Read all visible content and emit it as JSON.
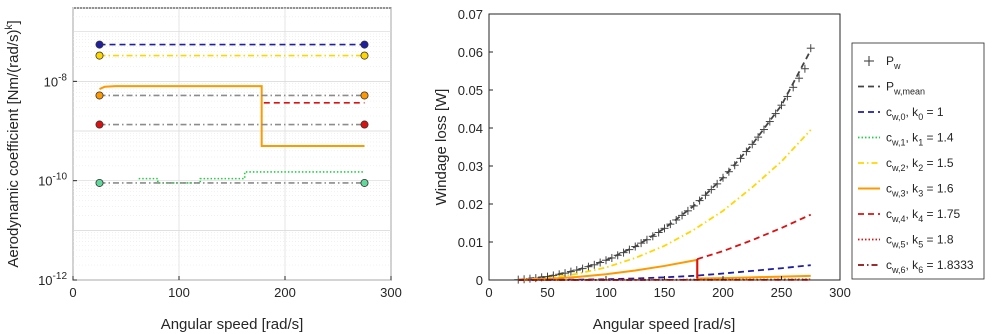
{
  "chart_data": [
    {
      "type": "line",
      "xlabel": "Angular speed [rad/s]",
      "ylabel": "Aerodynamic coefficient [Nm/(rad/s)",
      "ylabel_sup": "k",
      "ylabel_close": "]",
      "xlim": [
        0,
        300
      ],
      "ylim": [
        1e-12,
        3e-07
      ],
      "yscale": "log",
      "xticks": [
        0,
        100,
        200,
        300
      ],
      "xtick_labels": [
        "0",
        "100",
        "200",
        "300"
      ],
      "ytick_labels": [
        {
          "base": "10",
          "exp": "-8",
          "value": 1e-08
        },
        {
          "base": "10",
          "exp": "-10",
          "value": 1e-10
        },
        {
          "base": "10",
          "exp": "-12",
          "value": 1e-12
        }
      ],
      "grid": true,
      "series": [
        {
          "color": "#1f1fa0",
          "dash": "dash",
          "x": [
            25,
            275
          ],
          "y": [
            5.5e-08,
            5.5e-08
          ],
          "markers": [
            [
              25,
              5.5e-08
            ],
            [
              275,
              5.5e-08
            ]
          ]
        },
        {
          "color": "#ffd700",
          "dash": "dashdot",
          "x": [
            25,
            275
          ],
          "y": [
            3.3e-08,
            3.3e-08
          ],
          "markers": [
            [
              25,
              3.3e-08
            ],
            [
              275,
              3.3e-08
            ]
          ]
        },
        {
          "color": "#ff9900",
          "dash": "solid",
          "x": [
            25,
            30,
            40,
            178,
            178,
            275
          ],
          "y": [
            7e-09,
            7.8e-09,
            8e-09,
            8e-09,
            5e-10,
            5e-10
          ]
        },
        {
          "color": "#ff9900",
          "dash": "dashdot-gray",
          "x": [
            25,
            275
          ],
          "y": [
            5.2e-09,
            5.2e-09
          ],
          "markers": [
            [
              25,
              5.2e-09
            ],
            [
              275,
              5.2e-09
            ]
          ]
        },
        {
          "color": "#dd1111",
          "dash": "dash",
          "x": [
            180,
            275
          ],
          "y": [
            3.7e-09,
            3.7e-09
          ]
        },
        {
          "color": "#dd1111",
          "dash": "dashdot-gray",
          "x": [
            25,
            275
          ],
          "y": [
            1.35e-09,
            1.35e-09
          ],
          "markers": [
            [
              25,
              1.35e-09
            ],
            [
              275,
              1.35e-09
            ]
          ]
        },
        {
          "color": "#22cc44",
          "dash": "dot",
          "x": [
            62,
            80,
            80,
            120,
            120,
            162,
            162,
            275
          ],
          "y": [
            1.1e-10,
            1.1e-10,
            9e-11,
            9e-11,
            1.1e-10,
            1.1e-10,
            1.5e-10,
            1.5e-10
          ]
        },
        {
          "color": "#5fd89a",
          "dash": "dashdot-gray",
          "x": [
            25,
            275
          ],
          "y": [
            9e-11,
            9e-11
          ],
          "markers": [
            [
              25,
              9e-11
            ],
            [
              275,
              9e-11
            ]
          ]
        }
      ]
    },
    {
      "type": "line",
      "xlabel": "Angular speed [rad/s]",
      "ylabel": "Windage loss [W]",
      "xlim": [
        0,
        300
      ],
      "ylim": [
        0,
        0.07
      ],
      "xticks": [
        0,
        50,
        100,
        150,
        200,
        250,
        300
      ],
      "yticks": [
        0,
        0.01,
        0.02,
        0.03,
        0.04,
        0.05,
        0.06,
        0.07
      ],
      "xtick_labels": [
        "0",
        "50",
        "100",
        "150",
        "200",
        "250",
        "300"
      ],
      "ytick_labels": [
        "0",
        "0.01",
        "0.02",
        "0.03",
        "0.04",
        "0.05",
        "0.06",
        "0.07"
      ],
      "grid": false,
      "legend_position": "right-outside",
      "legend": [
        {
          "base": "P",
          "sub": "w",
          "tail": "",
          "style": "plus",
          "color": "#444444"
        },
        {
          "base": "P",
          "sub": "w,mean",
          "tail": "",
          "style": "dash",
          "color": "#444444"
        },
        {
          "base": "c",
          "sub": "w,0",
          "tail": ", k",
          "sub2": "0",
          "tail2": " = 1",
          "style": "dash",
          "color": "#1f1fa0"
        },
        {
          "base": "c",
          "sub": "w,1",
          "tail": ", k",
          "sub2": "1",
          "tail2": " = 1.4",
          "style": "dot",
          "color": "#22cc44"
        },
        {
          "base": "c",
          "sub": "w,2",
          "tail": ", k",
          "sub2": "2",
          "tail2": " = 1.5",
          "style": "dashdot",
          "color": "#ffd700"
        },
        {
          "base": "c",
          "sub": "w,3",
          "tail": ", k",
          "sub2": "3",
          "tail2": " = 1.6",
          "style": "solid",
          "color": "#ff9900"
        },
        {
          "base": "c",
          "sub": "w,4",
          "tail": ", k",
          "sub2": "4",
          "tail2": " = 1.75",
          "style": "dash",
          "color": "#dd1111"
        },
        {
          "base": "c",
          "sub": "w,5",
          "tail": ", k",
          "sub2": "5",
          "tail2": " = 1.8",
          "style": "dot",
          "color": "#dd1111"
        },
        {
          "base": "c",
          "sub": "w,6",
          "tail": ", k",
          "sub2": "6",
          "tail2": " = 1.8333",
          "style": "dashdot",
          "color": "#8b1010"
        }
      ],
      "series": [
        {
          "color": "#444444",
          "dash": "plus",
          "x": [
            25,
            30,
            35,
            40,
            45,
            50,
            55,
            60,
            65,
            70,
            75,
            80,
            85,
            90,
            95,
            100,
            105,
            110,
            115,
            120,
            125,
            130,
            135,
            140,
            145,
            150,
            155,
            160,
            165,
            170,
            175,
            180,
            185,
            190,
            195,
            200,
            205,
            210,
            215,
            220,
            225,
            230,
            235,
            240,
            245,
            250,
            255,
            260,
            265,
            270,
            275
          ],
          "y": [
            0.0001,
            0.0002,
            0.00035,
            0.0005,
            0.0007,
            0.0009,
            0.0012,
            0.0015,
            0.0018,
            0.0022,
            0.0026,
            0.003,
            0.0035,
            0.004,
            0.0046,
            0.0052,
            0.0058,
            0.0065,
            0.0072,
            0.008,
            0.0088,
            0.0097,
            0.0106,
            0.0115,
            0.0125,
            0.0136,
            0.0147,
            0.0158,
            0.017,
            0.0182,
            0.0195,
            0.0209,
            0.0223,
            0.0238,
            0.0253,
            0.0269,
            0.0285,
            0.0302,
            0.032,
            0.0338,
            0.0357,
            0.0376,
            0.0396,
            0.0417,
            0.0438,
            0.046,
            0.0483,
            0.0507,
            0.0531,
            0.0556,
            0.061
          ]
        },
        {
          "color": "#444444",
          "dash": "dash",
          "x": [
            25,
            50,
            75,
            100,
            125,
            150,
            175,
            200,
            225,
            250,
            275
          ],
          "y": [
            0.0001,
            0.0009,
            0.0026,
            0.0052,
            0.0088,
            0.0136,
            0.0195,
            0.0269,
            0.0357,
            0.046,
            0.0605
          ]
        },
        {
          "color": "#ffd700",
          "dash": "dashdot",
          "x": [
            25,
            50,
            75,
            100,
            125,
            150,
            175,
            200,
            225,
            250,
            275
          ],
          "y": [
            5e-05,
            0.0005,
            0.0016,
            0.0033,
            0.0058,
            0.009,
            0.0132,
            0.0182,
            0.0244,
            0.0312,
            0.0395
          ]
        },
        {
          "color": "#ff9900",
          "dash": "solid",
          "x": [
            25,
            50,
            75,
            100,
            125,
            150,
            178,
            178,
            200,
            225,
            250,
            275
          ],
          "y": [
            0,
            0.0003,
            0.0008,
            0.0015,
            0.0025,
            0.0037,
            0.0053,
            0.0004,
            0.0005,
            0.0007,
            0.0009,
            0.0011
          ]
        },
        {
          "color": "#dd1111",
          "dash": "solid",
          "x": [
            178,
            178
          ],
          "y": [
            0.0004,
            0.0055
          ]
        },
        {
          "color": "#dd1111",
          "dash": "dash",
          "x": [
            178,
            200,
            225,
            250,
            275
          ],
          "y": [
            0.0055,
            0.0076,
            0.0105,
            0.0137,
            0.0172
          ]
        },
        {
          "color": "#1f1fa0",
          "dash": "dash",
          "x": [
            25,
            50,
            75,
            100,
            125,
            150,
            175,
            200,
            225,
            250,
            275
          ],
          "y": [
            1e-05,
            5e-05,
            0.0001,
            0.0002,
            0.0004,
            0.0007,
            0.0011,
            0.0017,
            0.0024,
            0.0031,
            0.0039
          ]
        },
        {
          "color": "#22cc44",
          "dash": "dot",
          "x": [
            25,
            100,
            275
          ],
          "y": [
            0,
            5e-05,
            0.0002
          ]
        },
        {
          "color": "#dd1111",
          "dash": "dot",
          "x": [
            25,
            100,
            275
          ],
          "y": [
            0,
            2e-05,
            8e-05
          ]
        },
        {
          "color": "#8b1010",
          "dash": "dashdot",
          "x": [
            25,
            275
          ],
          "y": [
            0,
            5e-05
          ]
        }
      ]
    }
  ]
}
